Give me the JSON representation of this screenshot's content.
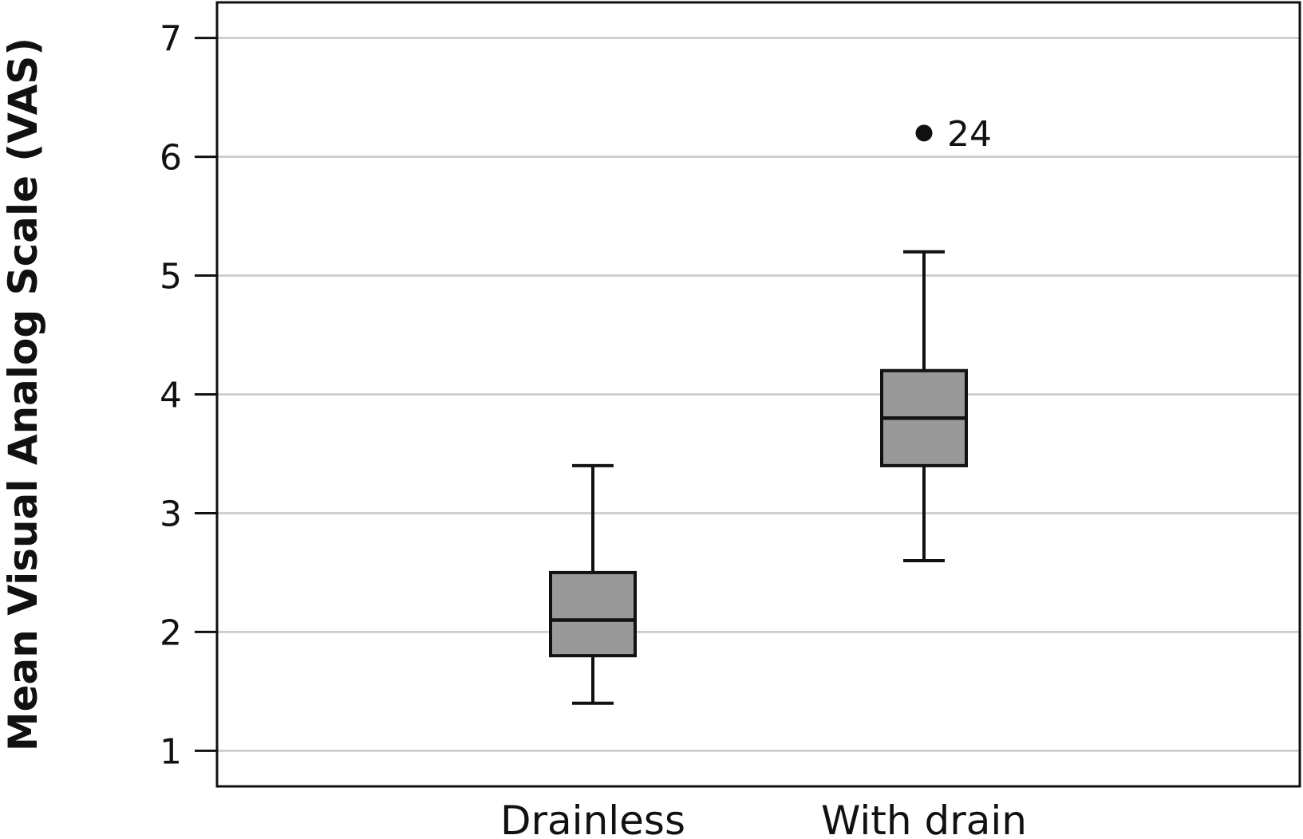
{
  "chart_data": {
    "type": "boxplot",
    "title": "",
    "xlabel": "",
    "ylabel": "Mean Visual Analog Scale (VAS)",
    "ylim": [
      0.7,
      7.3
    ],
    "yticks": [
      1,
      2,
      3,
      4,
      5,
      6,
      7
    ],
    "grid": true,
    "categories": [
      "Drainless",
      "With drain"
    ],
    "boxes": [
      {
        "name": "Drainless",
        "whisker_low": 1.4,
        "q1": 1.8,
        "median": 2.1,
        "q3": 2.5,
        "whisker_high": 3.4,
        "outliers": []
      },
      {
        "name": "With drain",
        "whisker_low": 2.6,
        "q1": 3.4,
        "median": 3.8,
        "q3": 4.2,
        "whisker_high": 5.2,
        "outliers": [
          {
            "value": 6.2,
            "label": "24"
          }
        ]
      }
    ],
    "colors": {
      "box_fill": "#999999",
      "stroke": "#111111",
      "grid": "#c8c8c8"
    }
  }
}
